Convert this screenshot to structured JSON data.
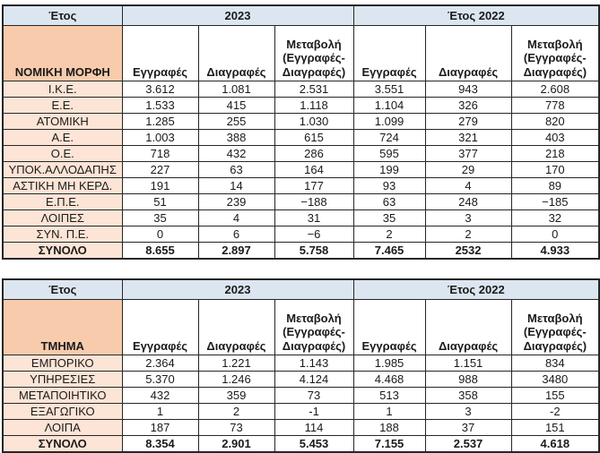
{
  "colors": {
    "year_header_bg": "#dce6f1",
    "row_header_bg": "#f8cbad",
    "row_label_bg": "#fce4d6",
    "border": "#262626",
    "text": "#1a1a1a"
  },
  "tables": [
    {
      "name": "legal-form-table",
      "year_label": "Έτος",
      "group_headers": [
        "2023",
        "Έτος 2022"
      ],
      "row_header": "ΝΟΜΙΚΗ ΜΟΡΦΗ",
      "col_headers": [
        "Εγγραφές",
        "Διαγραφές",
        "Μεταβολή\n(Εγγραφές-\nΔιαγραφές)",
        "Εγγραφές",
        "Διαγραφές",
        "Μεταβολή\n(Εγγραφές-\nΔιαγραφές)"
      ],
      "rows": [
        {
          "label": "Ι.Κ.Ε.",
          "values": [
            "3.612",
            "1.081",
            "2.531",
            "3.551",
            "943",
            "2.608"
          ]
        },
        {
          "label": "Ε.Ε.",
          "values": [
            "1.533",
            "415",
            "1.118",
            "1.104",
            "326",
            "778"
          ]
        },
        {
          "label": "ΑΤΟΜΙΚΗ",
          "values": [
            "1.285",
            "255",
            "1.030",
            "1.099",
            "279",
            "820"
          ]
        },
        {
          "label": "Α.Ε.",
          "values": [
            "1.003",
            "388",
            "615",
            "724",
            "321",
            "403"
          ]
        },
        {
          "label": "Ο.Ε.",
          "values": [
            "718",
            "432",
            "286",
            "595",
            "377",
            "218"
          ]
        },
        {
          "label": "ΥΠΟΚ.ΑΛΛΟΔΑΠΗΣ",
          "values": [
            "227",
            "63",
            "164",
            "199",
            "29",
            "170"
          ]
        },
        {
          "label": "ΑΣΤΙΚΗ ΜΗ ΚΕΡΔ.",
          "values": [
            "191",
            "14",
            "177",
            "93",
            "4",
            "89"
          ]
        },
        {
          "label": "Ε.Π.Ε.",
          "values": [
            "51",
            "239",
            "−188",
            "63",
            "248",
            "−185"
          ]
        },
        {
          "label": "ΛΟΙΠΕΣ",
          "values": [
            "35",
            "4",
            "31",
            "35",
            "3",
            "32"
          ]
        },
        {
          "label": "ΣΥΝ. Π.Ε.",
          "values": [
            "0",
            "6",
            "−6",
            "2",
            "2",
            "0"
          ]
        },
        {
          "label": "ΣΥΝΟΛΟ",
          "values": [
            "8.655",
            "2.897",
            "5.758",
            "7.465",
            "2532",
            "4.933"
          ],
          "total": true
        }
      ]
    },
    {
      "name": "sector-table",
      "year_label": "Έτος",
      "group_headers": [
        "2023",
        "Έτος 2022"
      ],
      "row_header": "ΤΜΗΜΑ",
      "col_headers": [
        "Εγγραφές",
        "Διαγραφές",
        "Μεταβολή\n(Εγγραφές-\nΔιαγραφές)",
        "Εγγραφές",
        "Διαγραφές",
        "Μεταβολή\n(Εγγραφές-\nΔιαγραφές)"
      ],
      "rows": [
        {
          "label": "ΕΜΠΟΡΙΚΟ",
          "values": [
            "2.364",
            "1.221",
            "1.143",
            "1.985",
            "1.151",
            "834"
          ]
        },
        {
          "label": "ΥΠΗΡΕΣΙΕΣ",
          "values": [
            "5.370",
            "1.246",
            "4.124",
            "4.468",
            "988",
            "3480"
          ]
        },
        {
          "label": "ΜΕΤΑΠΟΙΗΤΙΚΟ",
          "values": [
            "432",
            "359",
            "73",
            "513",
            "358",
            "155"
          ]
        },
        {
          "label": "ΕΞΑΓΩΓΙΚΟ",
          "values": [
            "1",
            "2",
            "-1",
            "1",
            "3",
            "-2"
          ]
        },
        {
          "label": "ΛΟΙΠΑ",
          "values": [
            "187",
            "73",
            "114",
            "188",
            "37",
            "151"
          ]
        },
        {
          "label": "ΣΥΝΟΛΟ",
          "values": [
            "8.354",
            "2.901",
            "5.453",
            "7.155",
            "2.537",
            "4.618"
          ],
          "total": true
        }
      ]
    }
  ]
}
